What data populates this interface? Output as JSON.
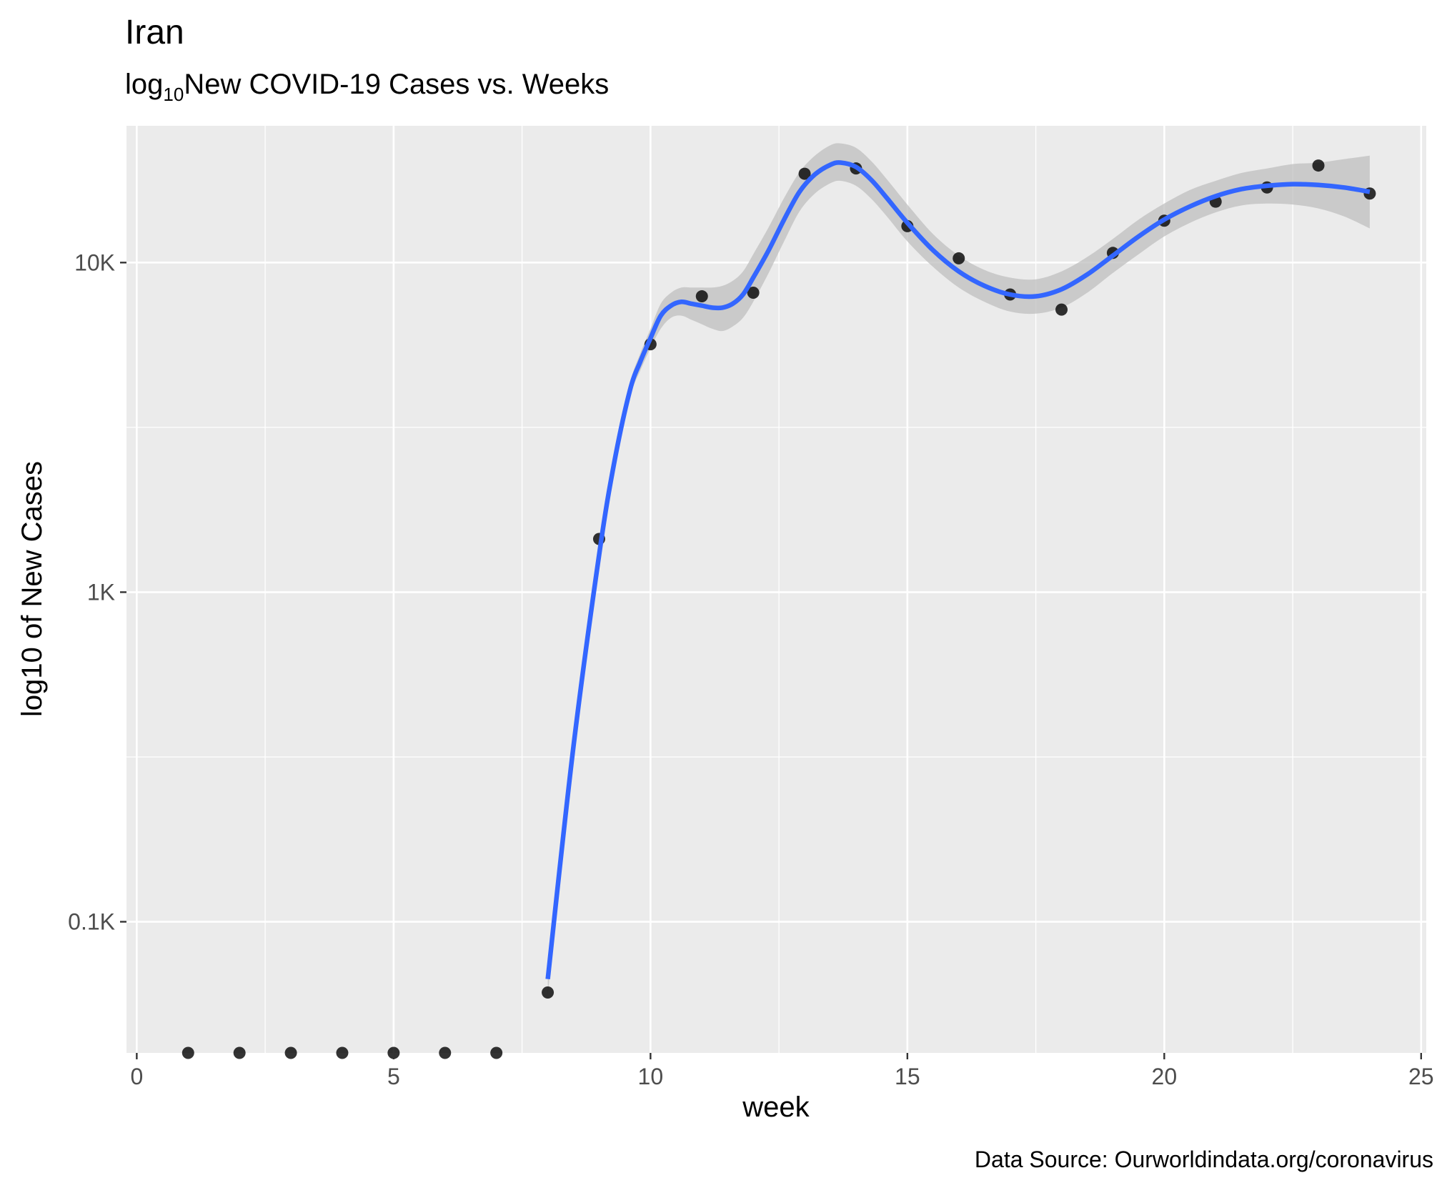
{
  "chart_data": {
    "type": "scatter",
    "title": "Iran",
    "subtitle": {
      "prefix": "log",
      "subscript": "10",
      "rest": "New COVID-19 Cases vs. Weeks"
    },
    "xlabel": "week",
    "ylabel": "log10 of New Cases",
    "caption": "Data Source: Ourworldindata.org/coronavirus",
    "y_scale": "log10",
    "xlim": [
      -0.2,
      25.1
    ],
    "ylim": [
      40,
      26000
    ],
    "x_ticks": [
      {
        "value": 0,
        "label": "0"
      },
      {
        "value": 5,
        "label": "5"
      },
      {
        "value": 10,
        "label": "10"
      },
      {
        "value": 15,
        "label": "15"
      },
      {
        "value": 20,
        "label": "20"
      },
      {
        "value": 25,
        "label": "25"
      }
    ],
    "y_ticks": [
      {
        "value": 100,
        "label": "0.1K"
      },
      {
        "value": 1000,
        "label": "1K"
      },
      {
        "value": 10000,
        "label": "10K"
      }
    ],
    "grid": true,
    "colors": {
      "panel": "#ebebeb",
      "grid": "#ffffff",
      "points": "#000000",
      "smooth_line": "#3366ff",
      "ribbon": "#bfbfbf"
    },
    "points": [
      {
        "week": 1,
        "cases": 0
      },
      {
        "week": 2,
        "cases": 0
      },
      {
        "week": 3,
        "cases": 0
      },
      {
        "week": 4,
        "cases": 0
      },
      {
        "week": 5,
        "cases": 0
      },
      {
        "week": 6,
        "cases": 0
      },
      {
        "week": 7,
        "cases": 0
      },
      {
        "week": 8,
        "cases": 61
      },
      {
        "week": 9,
        "cases": 1450
      },
      {
        "week": 10,
        "cases": 5650
      },
      {
        "week": 11,
        "cases": 7900
      },
      {
        "week": 12,
        "cases": 8100
      },
      {
        "week": 13,
        "cases": 18600
      },
      {
        "week": 14,
        "cases": 19300
      },
      {
        "week": 15,
        "cases": 12900
      },
      {
        "week": 16,
        "cases": 10300
      },
      {
        "week": 17,
        "cases": 8000
      },
      {
        "week": 18,
        "cases": 7200
      },
      {
        "week": 19,
        "cases": 10700
      },
      {
        "week": 20,
        "cases": 13400
      },
      {
        "week": 21,
        "cases": 15300
      },
      {
        "week": 22,
        "cases": 16900
      },
      {
        "week": 23,
        "cases": 19700
      },
      {
        "week": 24,
        "cases": 16200
      }
    ],
    "smooth": {
      "method": "loess",
      "x": [
        8,
        8.5,
        9,
        9.3,
        9.6,
        9.8,
        10,
        10.2,
        10.4,
        10.6,
        10.8,
        11,
        11.2,
        11.4,
        11.6,
        11.8,
        12,
        12.3,
        12.6,
        12.9,
        13.2,
        13.5,
        13.7,
        14,
        14.3,
        14.6,
        15,
        15.5,
        16,
        16.5,
        17,
        17.5,
        18,
        18.5,
        19,
        19.5,
        20,
        20.5,
        21,
        21.5,
        22,
        22.5,
        23,
        23.5,
        24
      ],
      "y": [
        67,
        340,
        1300,
        2500,
        4100,
        5000,
        5900,
        6900,
        7400,
        7600,
        7500,
        7400,
        7300,
        7300,
        7500,
        8000,
        9000,
        10900,
        13500,
        16400,
        18500,
        19800,
        20100,
        19500,
        17800,
        15700,
        13200,
        10900,
        9400,
        8500,
        8000,
        7900,
        8300,
        9200,
        10500,
        12000,
        13500,
        14800,
        15900,
        16700,
        17100,
        17300,
        17200,
        16900,
        16400
      ],
      "lower": [
        60,
        320,
        1250,
        2400,
        3900,
        4700,
        5500,
        6300,
        6800,
        6900,
        6700,
        6500,
        6300,
        6200,
        6400,
        6800,
        7600,
        9300,
        11600,
        14300,
        16200,
        17400,
        17700,
        17100,
        15600,
        13800,
        11600,
        9700,
        8400,
        7600,
        7100,
        7000,
        7300,
        8100,
        9300,
        10600,
        12000,
        13200,
        14200,
        14900,
        15100,
        15000,
        14600,
        13800,
        12700
      ],
      "upper": [
        74,
        360,
        1350,
        2600,
        4300,
        5300,
        6300,
        7500,
        8100,
        8400,
        8400,
        8400,
        8400,
        8500,
        8800,
        9400,
        10600,
        12800,
        15700,
        18800,
        21100,
        22700,
        23000,
        22300,
        20300,
        17900,
        15000,
        12200,
        10500,
        9500,
        9000,
        8900,
        9400,
        10400,
        11800,
        13500,
        15100,
        16600,
        17700,
        18700,
        19300,
        19900,
        20100,
        20600,
        21100
      ]
    }
  }
}
